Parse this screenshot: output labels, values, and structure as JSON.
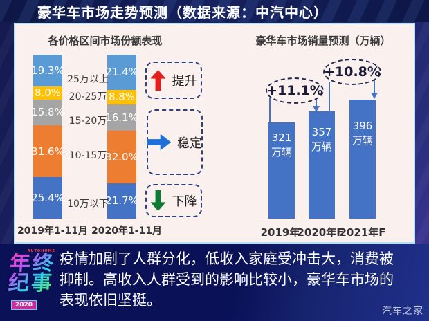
{
  "title_bar": {
    "title": "豪华车市场走势预测（数据来源：中汽中心）"
  },
  "chart_data": [
    {
      "type": "bar",
      "subtype": "100%-stacked-column",
      "title": "各价格区间市场份额表现",
      "categories": [
        "2019年1-11月",
        "2020年1-11月"
      ],
      "segments": [
        "10万以下",
        "10-15万",
        "15-20万",
        "20-25万",
        "25万以上"
      ],
      "segment_colors": [
        "#4472C4",
        "#ED7D31",
        "#A5A5A5",
        "#FFC000",
        "#5B9BD5"
      ],
      "series": [
        {
          "name": "2019年1-11月",
          "values": [
            25.4,
            31.6,
            15.8,
            8.0,
            19.3
          ]
        },
        {
          "name": "2020年1-11月",
          "values": [
            21.7,
            32.0,
            16.1,
            8.8,
            21.4
          ]
        }
      ],
      "unit": "%",
      "ylim": [
        0,
        100
      ],
      "grid": false,
      "legend_position": "right",
      "legend": [
        {
          "label": "提升",
          "arrow": "up",
          "color": "#E3211C"
        },
        {
          "label": "稳定",
          "arrow": "right",
          "color": "#1F6FD8"
        },
        {
          "label": "下降",
          "arrow": "down",
          "color": "#0E7A34"
        }
      ]
    },
    {
      "type": "bar",
      "title": "豪华车市场销量预测（万辆）",
      "categories": [
        "2019年",
        "2020年F",
        "2021年F"
      ],
      "values": [
        321,
        357,
        396
      ],
      "unit": "万辆",
      "annotations": [
        "+11.1%",
        "+10.8%"
      ],
      "bar_color": "#4472C4",
      "grid": false
    }
  ],
  "footer": {
    "logo": {
      "brand": "AUTOHOME",
      "line1": "年终",
      "line2": "纪事",
      "year": "2020"
    },
    "text_lines": [
      "疫情加剧了人群分化，低收入家庭受冲击大，消费被",
      "抑制。高收入人群受到的影响比较小，豪华车市场的",
      "表现依旧坚挺。"
    ],
    "watermark": "汽车之家"
  }
}
